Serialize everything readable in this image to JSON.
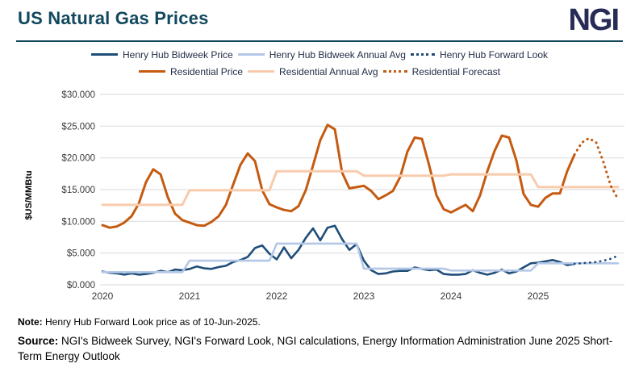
{
  "header": {
    "title": "US Natural Gas Prices",
    "logo": "NGI"
  },
  "colors": {
    "accent_teal": "#12485e",
    "logo_navy": "#272b55",
    "henry_hub": "#1f4e79",
    "henry_hub_avg": "#b4c7e7",
    "residential": "#c55a11",
    "residential_avg": "#f8cbad",
    "gridline": "#d9d9d9"
  },
  "legend": [
    {
      "label": "Henry Hub Bidweek Price",
      "color": "#1f4e79",
      "style": "solid"
    },
    {
      "label": "Henry Hub Bidweek Annual Avg",
      "color": "#b4c7e7",
      "style": "solid"
    },
    {
      "label": "Henry Hub Forward Look",
      "color": "#1f4e79",
      "style": "dotted"
    },
    {
      "label": "Residential Price",
      "color": "#c55a11",
      "style": "solid"
    },
    {
      "label": "Residential Annual Avg",
      "color": "#f8cbad",
      "style": "solid"
    },
    {
      "label": "Residential Forecast",
      "color": "#c55a11",
      "style": "dotted"
    }
  ],
  "chart_data": {
    "type": "line",
    "title": "US Natural Gas Prices",
    "ylabel": "$US/MMBtu",
    "ylim": [
      0,
      30
    ],
    "yticks": [
      0,
      5,
      10,
      15,
      20,
      25,
      30
    ],
    "ytick_labels": [
      "$0.000",
      "$5.000",
      "$10.000",
      "$15.000",
      "$20.000",
      "$25.000",
      "$30.000"
    ],
    "x_labels": [
      "2020",
      "2021",
      "2022",
      "2023",
      "2024",
      "2025"
    ],
    "x_unit": "month",
    "n_months": 72,
    "grid": "horizontal",
    "legend_position": "top",
    "series": [
      {
        "name": "Henry Hub Bidweek Price",
        "color": "#1f4e79",
        "style": "solid",
        "width": 2.6,
        "start_month": 0,
        "values": [
          2.1,
          1.9,
          1.8,
          1.6,
          1.8,
          1.6,
          1.7,
          1.9,
          2.2,
          2.0,
          2.4,
          2.3,
          2.5,
          2.9,
          2.6,
          2.5,
          2.8,
          3.0,
          3.6,
          3.9,
          4.4,
          5.8,
          6.2,
          4.9,
          4.0,
          5.9,
          4.2,
          5.5,
          7.4,
          8.9,
          7.0,
          9.0,
          9.3,
          7.2,
          5.5,
          6.4,
          3.8,
          2.3,
          1.7,
          1.8,
          2.1,
          2.2,
          2.2,
          2.75,
          2.5,
          2.3,
          2.4,
          1.7,
          1.6,
          1.6,
          1.7,
          2.3,
          1.9,
          1.6,
          1.9,
          2.4,
          1.8,
          2.1,
          2.75,
          3.4,
          3.5,
          3.7,
          3.9,
          3.6,
          3.1,
          3.3
        ]
      },
      {
        "name": "Henry Hub Bidweek Annual Avg",
        "color": "#b4c7e7",
        "style": "solid",
        "width": 2.6,
        "yearly": true,
        "annual_values": [
          2.0,
          3.8,
          6.5,
          2.55,
          2.25,
          3.4
        ]
      },
      {
        "name": "Henry Hub Forward Look",
        "color": "#1f4e79",
        "style": "dotted",
        "width": 2.6,
        "start_month": 65,
        "values": [
          3.3,
          3.4,
          3.5,
          3.6,
          3.8,
          4.1,
          4.6
        ]
      },
      {
        "name": "Residential Price",
        "color": "#c55a11",
        "style": "solid",
        "width": 3,
        "start_month": 0,
        "values": [
          9.4,
          9.0,
          9.2,
          9.8,
          10.8,
          12.8,
          16.2,
          18.2,
          17.4,
          13.8,
          11.2,
          10.2,
          9.8,
          9.4,
          9.3,
          9.9,
          10.8,
          12.6,
          15.8,
          18.9,
          20.7,
          19.5,
          14.9,
          12.7,
          12.2,
          11.8,
          11.6,
          12.4,
          14.9,
          18.8,
          22.8,
          25.2,
          24.5,
          17.7,
          15.2,
          15.4,
          15.6,
          14.8,
          13.5,
          14.1,
          14.8,
          17.0,
          21.0,
          23.2,
          23.0,
          18.8,
          14.1,
          11.9,
          11.4,
          12.0,
          12.6,
          11.6,
          14.1,
          17.9,
          21.1,
          23.5,
          23.2,
          19.6,
          14.3,
          12.6,
          12.3,
          13.7,
          14.4,
          14.4,
          17.9,
          20.5
        ]
      },
      {
        "name": "Residential Annual Avg",
        "color": "#f8cbad",
        "style": "solid",
        "width": 3,
        "yearly": true,
        "annual_values": [
          12.6,
          14.9,
          17.9,
          17.2,
          17.4,
          15.4
        ]
      },
      {
        "name": "Residential Forecast",
        "color": "#c55a11",
        "style": "dotted",
        "width": 3,
        "start_month": 65,
        "values": [
          20.5,
          22.4,
          23.1,
          22.4,
          19.3,
          15.6,
          13.5
        ]
      }
    ]
  },
  "footer": {
    "note_label": "Note:",
    "note_text": " Henry Hub Forward Look price as of 10-Jun-2025.",
    "source_label": "Source:",
    "source_text": " NGI's Bidweek Survey, NGI's Forward Look, NGI calculations, Energy Information Administration June 2025 Short-Term Energy Outlook"
  }
}
